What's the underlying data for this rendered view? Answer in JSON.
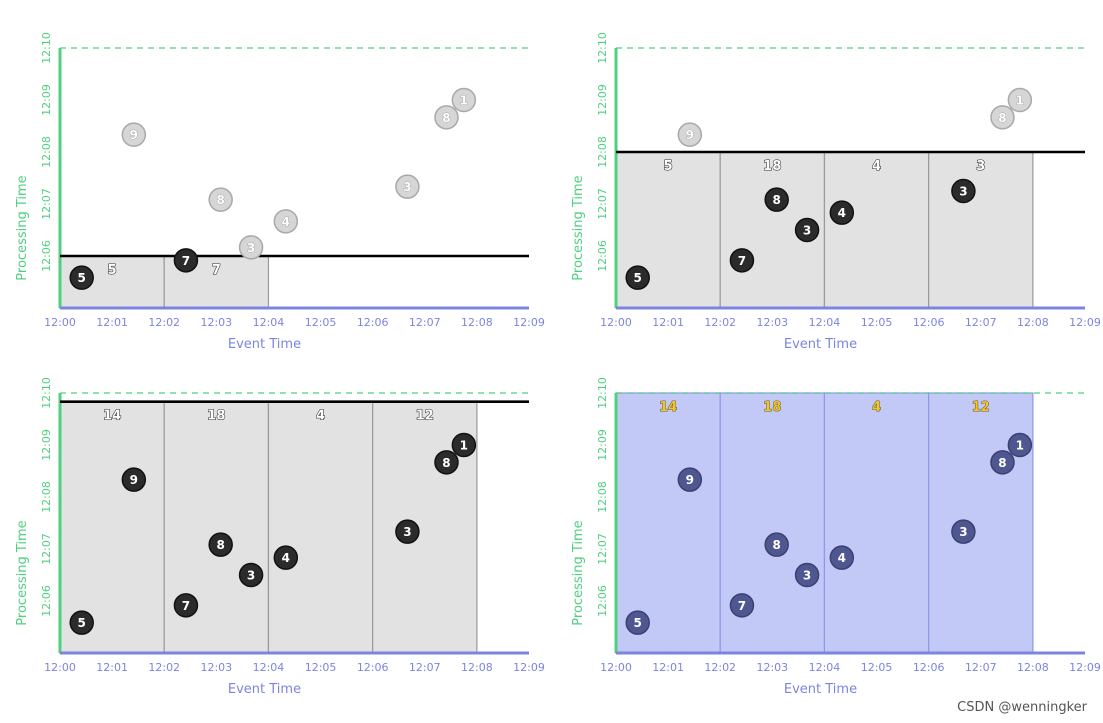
{
  "axis_text": {
    "x_ticks": [
      "12:00",
      "12:01",
      "12:02",
      "12:03",
      "12:04",
      "12:05",
      "12:06",
      "12:07",
      "12:08",
      "12:09"
    ],
    "y_ticks": [
      "12:06",
      "12:07",
      "12:08",
      "12:09",
      "12:10"
    ],
    "x_label": "Event Time",
    "y_label": "Processing Time"
  },
  "colors": {
    "x_axis": "#7b85e0",
    "y_axis": "#4fd07f",
    "window_gray": "#e2e2e2",
    "window_blue": "#c3c9f6",
    "dot_dark": "#2b2b2b",
    "dot_ghost": "#d6d6d6",
    "dot_blue": "#4f5791",
    "label_gold": "#f5c518",
    "watermark_line": "#000000"
  },
  "chart_data": [
    {
      "type": "scatter",
      "panel": "top-left",
      "xlabel": "Event Time",
      "ylabel": "Processing Time",
      "xlim": [
        "12:00",
        "12:09"
      ],
      "ylim": [
        "12:05:00",
        "12:10"
      ],
      "watermark": "12:06:00",
      "windows": [
        {
          "start": "12:00",
          "end": "12:02",
          "sum": "5"
        },
        {
          "start": "12:02",
          "end": "12:04",
          "sum": "7"
        }
      ],
      "points": [
        {
          "label": "5",
          "event": "12:00:25",
          "processing": "12:05:35",
          "state": "processed"
        },
        {
          "label": "7",
          "event": "12:02:25",
          "processing": "12:05:55",
          "state": "processed"
        },
        {
          "label": "3",
          "event": "12:03:40",
          "processing": "12:06:10",
          "state": "pending"
        },
        {
          "label": "8",
          "event": "12:03:05",
          "processing": "12:07:05",
          "state": "pending"
        },
        {
          "label": "4",
          "event": "12:04:20",
          "processing": "12:06:40",
          "state": "pending"
        },
        {
          "label": "9",
          "event": "12:01:25",
          "processing": "12:08:20",
          "state": "pending"
        },
        {
          "label": "3",
          "event": "12:06:40",
          "processing": "12:07:20",
          "state": "pending"
        },
        {
          "label": "8",
          "event": "12:07:25",
          "processing": "12:08:40",
          "state": "pending"
        },
        {
          "label": "1",
          "event": "12:07:45",
          "processing": "12:09:00",
          "state": "pending"
        }
      ]
    },
    {
      "type": "scatter",
      "panel": "top-right",
      "xlabel": "Event Time",
      "ylabel": "Processing Time",
      "xlim": [
        "12:00",
        "12:09"
      ],
      "ylim": [
        "12:05:00",
        "12:10"
      ],
      "watermark": "12:08:00",
      "windows": [
        {
          "start": "12:00",
          "end": "12:02",
          "sum": "5"
        },
        {
          "start": "12:02",
          "end": "12:04",
          "sum": "18"
        },
        {
          "start": "12:04",
          "end": "12:06",
          "sum": "4"
        },
        {
          "start": "12:06",
          "end": "12:08",
          "sum": "3"
        }
      ],
      "points": [
        {
          "label": "5",
          "event": "12:00:25",
          "processing": "12:05:35",
          "state": "processed"
        },
        {
          "label": "7",
          "event": "12:02:25",
          "processing": "12:05:55",
          "state": "processed"
        },
        {
          "label": "3",
          "event": "12:03:40",
          "processing": "12:06:30",
          "state": "processed"
        },
        {
          "label": "8",
          "event": "12:03:05",
          "processing": "12:07:05",
          "state": "processed"
        },
        {
          "label": "4",
          "event": "12:04:20",
          "processing": "12:06:50",
          "state": "processed"
        },
        {
          "label": "3",
          "event": "12:06:40",
          "processing": "12:07:15",
          "state": "processed"
        },
        {
          "label": "9",
          "event": "12:01:25",
          "processing": "12:08:20",
          "state": "pending"
        },
        {
          "label": "8",
          "event": "12:07:25",
          "processing": "12:08:40",
          "state": "pending"
        },
        {
          "label": "1",
          "event": "12:07:45",
          "processing": "12:09:00",
          "state": "pending"
        }
      ]
    },
    {
      "type": "scatter",
      "panel": "bottom-left",
      "xlabel": "Event Time",
      "ylabel": "Processing Time",
      "xlim": [
        "12:00",
        "12:09"
      ],
      "ylim": [
        "12:05:00",
        "12:10"
      ],
      "watermark": "12:09:50",
      "windows": [
        {
          "start": "12:00",
          "end": "12:02",
          "sum": "14"
        },
        {
          "start": "12:02",
          "end": "12:04",
          "sum": "18"
        },
        {
          "start": "12:04",
          "end": "12:06",
          "sum": "4"
        },
        {
          "start": "12:06",
          "end": "12:08",
          "sum": "12"
        }
      ],
      "points": [
        {
          "label": "5",
          "event": "12:00:25",
          "processing": "12:05:35",
          "state": "processed"
        },
        {
          "label": "7",
          "event": "12:02:25",
          "processing": "12:05:55",
          "state": "processed"
        },
        {
          "label": "3",
          "event": "12:03:40",
          "processing": "12:06:30",
          "state": "processed"
        },
        {
          "label": "8",
          "event": "12:03:05",
          "processing": "12:07:05",
          "state": "processed"
        },
        {
          "label": "4",
          "event": "12:04:20",
          "processing": "12:06:50",
          "state": "processed"
        },
        {
          "label": "9",
          "event": "12:01:25",
          "processing": "12:08:20",
          "state": "processed"
        },
        {
          "label": "3",
          "event": "12:06:40",
          "processing": "12:07:20",
          "state": "processed"
        },
        {
          "label": "8",
          "event": "12:07:25",
          "processing": "12:08:40",
          "state": "processed"
        },
        {
          "label": "1",
          "event": "12:07:45",
          "processing": "12:09:00",
          "state": "processed"
        }
      ]
    },
    {
      "type": "scatter",
      "panel": "bottom-right",
      "xlabel": "Event Time",
      "ylabel": "Processing Time",
      "xlim": [
        "12:00",
        "12:09"
      ],
      "ylim": [
        "12:05:00",
        "12:10"
      ],
      "watermark": "",
      "windows": [
        {
          "start": "12:00",
          "end": "12:02",
          "sum": "14"
        },
        {
          "start": "12:02",
          "end": "12:04",
          "sum": "18"
        },
        {
          "start": "12:04",
          "end": "12:06",
          "sum": "4"
        },
        {
          "start": "12:06",
          "end": "12:08",
          "sum": "12"
        }
      ],
      "points": [
        {
          "label": "5",
          "event": "12:00:25",
          "processing": "12:05:35",
          "state": "final"
        },
        {
          "label": "7",
          "event": "12:02:25",
          "processing": "12:05:55",
          "state": "final"
        },
        {
          "label": "3",
          "event": "12:03:40",
          "processing": "12:06:30",
          "state": "final"
        },
        {
          "label": "8",
          "event": "12:03:05",
          "processing": "12:07:05",
          "state": "final"
        },
        {
          "label": "4",
          "event": "12:04:20",
          "processing": "12:06:50",
          "state": "final"
        },
        {
          "label": "9",
          "event": "12:01:25",
          "processing": "12:08:20",
          "state": "final"
        },
        {
          "label": "3",
          "event": "12:06:40",
          "processing": "12:07:20",
          "state": "final"
        },
        {
          "label": "8",
          "event": "12:07:25",
          "processing": "12:08:40",
          "state": "final"
        },
        {
          "label": "1",
          "event": "12:07:45",
          "processing": "12:09:00",
          "state": "final"
        }
      ]
    }
  ],
  "footer": {
    "credit": "CSDN @wenningker"
  }
}
